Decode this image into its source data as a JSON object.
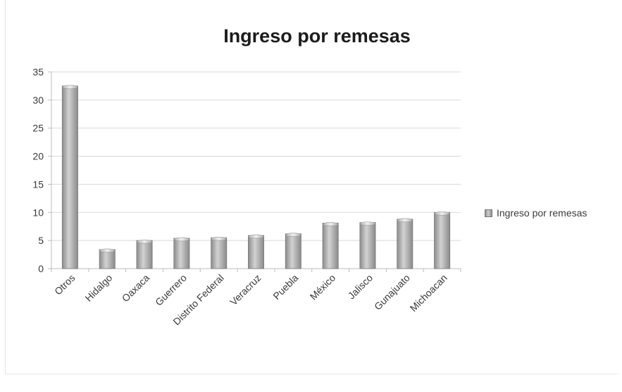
{
  "chart_data": {
    "type": "bar",
    "title": "Ingreso por remesas",
    "xlabel": "",
    "ylabel": "",
    "categories": [
      "Otros",
      "Hidalgo",
      "Oaxaca",
      "Guerrero",
      "Distrito Federal",
      "Veracruz",
      "Puebla",
      "México",
      "Jalisco",
      "Gunajuato",
      "Michoacan"
    ],
    "series": [
      {
        "name": "Ingreso por remesas",
        "values": [
          32.5,
          3.4,
          5.0,
          5.4,
          5.5,
          5.9,
          6.2,
          8.1,
          8.2,
          8.8,
          10.0
        ]
      }
    ],
    "ylim": [
      0,
      35
    ],
    "yticks": [
      "0",
      "5",
      "10",
      "15",
      "20",
      "25",
      "30",
      "35"
    ],
    "grid": true,
    "legend_position": "right",
    "colors": {
      "bar_dark": "#8c8c8c",
      "bar_light": "#d2d2d2",
      "bar_edge": "#7a7a7a",
      "grid": "#d9d9d9",
      "axis": "#bcbcbc"
    }
  }
}
